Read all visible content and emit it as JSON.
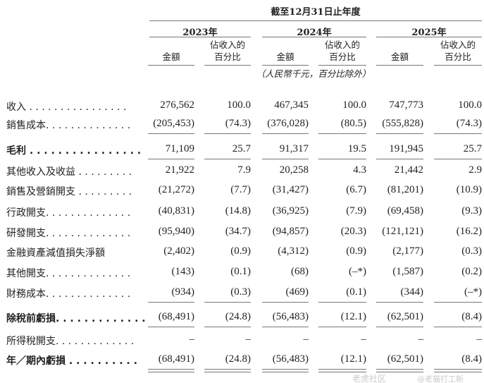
{
  "header": {
    "period": "截至12月31日止年度",
    "years": [
      "2023年",
      "2024年",
      "2025年"
    ],
    "amount_label": "金額",
    "pct_label_line1": "佔收入的",
    "pct_label_line2": "百分比",
    "unit_note": "（人民幣千元，百分比除外）"
  },
  "rows": [
    {
      "label": "收入 . . . . . . . . . . . . . . . .",
      "values": [
        "276,562",
        "100.0",
        "467,345",
        "100.0",
        "747,773",
        "100.0"
      ]
    },
    {
      "label": "銷售成本. . . . . . . . . . . . . .",
      "values": [
        "(205,453)",
        "(74.3)",
        "(376,028)",
        "(80.5)",
        "(555,828)",
        "(74.3)"
      ]
    },
    {
      "label": "毛利 . . . . . . . . . . . . . . . .",
      "values": [
        "71,109",
        "25.7",
        "91,317",
        "19.5",
        "191,945",
        "25.7"
      ]
    },
    {
      "label": "其他收入及收益 . . . . . . . . .",
      "values": [
        "21,922",
        "7.9",
        "20,258",
        "4.3",
        "21,442",
        "2.9"
      ]
    },
    {
      "label": "銷售及營銷開支 . . . . . . . . .",
      "values": [
        "(21,272)",
        "(7.7)",
        "(31,427)",
        "(6.7)",
        "(81,201)",
        "(10.9)"
      ]
    },
    {
      "label": "行政開支. . . . . . . . . . . . . .",
      "values": [
        "(40,831)",
        "(14.8)",
        "(36,925)",
        "(7.9)",
        "(69,458)",
        "(9.3)"
      ]
    },
    {
      "label": "研發開支. . . . . . . . . . . . . .",
      "values": [
        "(95,940)",
        "(34.7)",
        "(94,857)",
        "(20.3)",
        "(121,121)",
        "(16.2)"
      ]
    },
    {
      "label": "金融資產減值損失淨額",
      "values": [
        "(2,402)",
        "(0.9)",
        "(4,312)",
        "(0.9)",
        "(2,177)",
        "(0.3)"
      ]
    },
    {
      "label": "其他開支. . . . . . . . . . . . . .",
      "values": [
        "(143)",
        "(0.1)",
        "(68)",
        "(–*)",
        "(1,587)",
        "(0.2)"
      ]
    },
    {
      "label": "財務成本. . . . . . . . . . . . . .",
      "values": [
        "(934)",
        "(0.3)",
        "(469)",
        "(0.1)",
        "(344)",
        "(–*)"
      ]
    },
    {
      "label": "除稅前虧損. . . . . . . . . . . . .",
      "values": [
        "(68,491)",
        "(24.8)",
        "(56,483)",
        "(12.1)",
        "(62,501)",
        "(8.4)"
      ]
    },
    {
      "label": "所得稅開支. . . . . . . . . . . . .",
      "values": [
        "–",
        "–",
        "–",
        "–",
        "–",
        "–"
      ]
    },
    {
      "label": "年／期內虧損 . . . . . . . . . .",
      "values": [
        "(68,491)",
        "(24.8)",
        "(56,483)",
        "(12.1)",
        "(62,501)",
        "(8.4)"
      ]
    }
  ],
  "watermark": {
    "line1": "老虎社区",
    "line2": "@老猫打工新"
  }
}
